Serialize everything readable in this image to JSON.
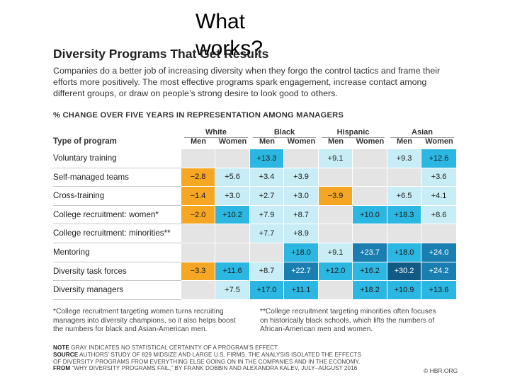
{
  "slide": {
    "title": "What works?"
  },
  "figure": {
    "heading": "Diversity Programs That Get Results",
    "intro": "Companies do a better job of increasing diversity when they forgo the control tactics and frame their efforts more positively. The most effective programs spark engagement, increase contact among different groups, or draw on people’s strong desire to look good to others.",
    "subhead": "% CHANGE OVER FIVE YEARS IN REPRESENTATION AMONG MANAGERS",
    "type_header": "Type of program",
    "groups": [
      "White",
      "Black",
      "Hispanic",
      "Asian"
    ],
    "subcols": [
      "Men",
      "Women"
    ],
    "rows": [
      {
        "label": "Voluntary training",
        "cells": [
          {
            "v": "",
            "c": "gray"
          },
          {
            "v": "",
            "c": "gray"
          },
          {
            "v": "+13.3",
            "c": "mid"
          },
          {
            "v": "",
            "c": "gray"
          },
          {
            "v": "+9.1",
            "c": "pale"
          },
          {
            "v": "",
            "c": "gray"
          },
          {
            "v": "+9.3",
            "c": "pale"
          },
          {
            "v": "+12.6",
            "c": "mid"
          }
        ]
      },
      {
        "label": "Self-managed teams",
        "cells": [
          {
            "v": "−2.8",
            "c": "orange"
          },
          {
            "v": "+5.6",
            "c": "pale"
          },
          {
            "v": "+3.4",
            "c": "pale"
          },
          {
            "v": "+3.9",
            "c": "pale"
          },
          {
            "v": "",
            "c": "gray"
          },
          {
            "v": "",
            "c": "gray"
          },
          {
            "v": "",
            "c": "gray"
          },
          {
            "v": "+3.6",
            "c": "pale"
          }
        ]
      },
      {
        "label": "Cross-training",
        "cells": [
          {
            "v": "−1.4",
            "c": "orange"
          },
          {
            "v": "+3.0",
            "c": "pale"
          },
          {
            "v": "+2.7",
            "c": "pale"
          },
          {
            "v": "+3.0",
            "c": "pale"
          },
          {
            "v": "−3.9",
            "c": "orange"
          },
          {
            "v": "",
            "c": "gray"
          },
          {
            "v": "+6.5",
            "c": "pale"
          },
          {
            "v": "+4.1",
            "c": "pale"
          }
        ]
      },
      {
        "label": "College recruitment: women*",
        "cells": [
          {
            "v": "−2.0",
            "c": "orange"
          },
          {
            "v": "+10.2",
            "c": "mid"
          },
          {
            "v": "+7.9",
            "c": "pale"
          },
          {
            "v": "+8.7",
            "c": "pale"
          },
          {
            "v": "",
            "c": "gray"
          },
          {
            "v": "+10.0",
            "c": "mid"
          },
          {
            "v": "+18.3",
            "c": "mid"
          },
          {
            "v": "+8.6",
            "c": "pale"
          }
        ]
      },
      {
        "label": "College recruitment: minorities**",
        "cells": [
          {
            "v": "",
            "c": "gray"
          },
          {
            "v": "",
            "c": "gray"
          },
          {
            "v": "+7.7",
            "c": "pale"
          },
          {
            "v": "+8.9",
            "c": "pale"
          },
          {
            "v": "",
            "c": "gray"
          },
          {
            "v": "",
            "c": "gray"
          },
          {
            "v": "",
            "c": "gray"
          },
          {
            "v": "",
            "c": "gray"
          }
        ]
      },
      {
        "label": "Mentoring",
        "cells": [
          {
            "v": "",
            "c": "gray"
          },
          {
            "v": "",
            "c": "gray"
          },
          {
            "v": "",
            "c": "gray"
          },
          {
            "v": "+18.0",
            "c": "mid"
          },
          {
            "v": "+9.1",
            "c": "pale"
          },
          {
            "v": "+23.7",
            "c": "dark"
          },
          {
            "v": "+18.0",
            "c": "mid"
          },
          {
            "v": "+24.0",
            "c": "dark"
          }
        ]
      },
      {
        "label": "Diversity task forces",
        "cells": [
          {
            "v": "−3.3",
            "c": "orange"
          },
          {
            "v": "+11.6",
            "c": "mid"
          },
          {
            "v": "+8.7",
            "c": "pale"
          },
          {
            "v": "+22.7",
            "c": "dark"
          },
          {
            "v": "+12.0",
            "c": "mid"
          },
          {
            "v": "+16.2",
            "c": "mid"
          },
          {
            "v": "+30.2",
            "c": "darkest"
          },
          {
            "v": "+24.2",
            "c": "dark"
          }
        ]
      },
      {
        "label": "Diversity managers",
        "cells": [
          {
            "v": "",
            "c": "gray"
          },
          {
            "v": "+7.5",
            "c": "pale"
          },
          {
            "v": "+17.0",
            "c": "mid"
          },
          {
            "v": "+11.1",
            "c": "mid"
          },
          {
            "v": "",
            "c": "gray"
          },
          {
            "v": "+18.2",
            "c": "mid"
          },
          {
            "v": "+10.9",
            "c": "mid"
          },
          {
            "v": "+13.6",
            "c": "mid"
          }
        ]
      }
    ],
    "footnote_left": "*College recruitment targeting women turns recruiting managers into diversity champions, so it also helps boost the numbers for black and Asian-American men.",
    "footnote_right": "**College recruitment targeting minorities often focuses on historically black schools, which lifts the numbers of African-American men and women.",
    "note": {
      "note_label": "NOTE",
      "note_text": "GRAY INDICATES NO STATISTICAL CERTAINTY OF A PROGRAM’S EFFECT.",
      "source_label": "SOURCE",
      "source_text": "AUTHORS’ STUDY OF 829 MIDSIZE AND LARGE U.S. FIRMS. THE ANALYSIS ISOLATED THE EFFECTS",
      "source_text2": "OF DIVERSITY PROGRAMS FROM EVERYTHING ELSE GOING ON IN THE COMPANIES AND IN THE ECONOMY.",
      "from_label": "FROM",
      "from_text": "“WHY DIVERSITY PROGRAMS FAIL,” BY FRANK DOBBIN AND ALEXANDRA KALEV, JULY–AUGUST 2016"
    },
    "credit": "© HBR.ORG"
  },
  "colors": {
    "gray": "#e4e4e4",
    "orange": "#f5a623",
    "pale": "#c9edf6",
    "mid": "#2bb7e1",
    "dark": "#1a7fb0",
    "darkest": "#125a86",
    "text_dark": "#1a1a1a",
    "text_light": "#ffffff"
  }
}
